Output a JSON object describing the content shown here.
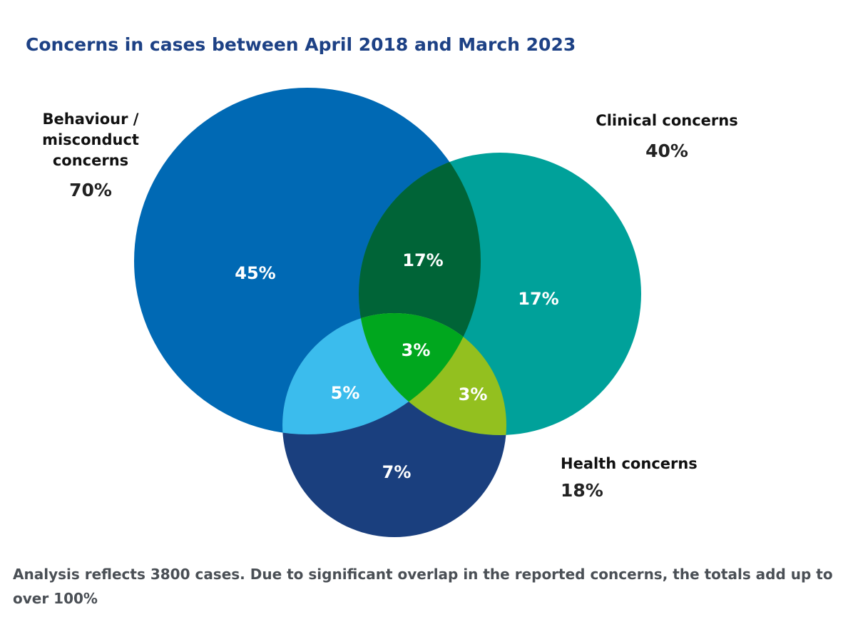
{
  "chart_data": {
    "type": "venn",
    "title": "Concerns in cases between April 2018 and March 2023",
    "sets": [
      "Behaviour / misconduct concerns",
      "Clinical concerns",
      "Health concerns"
    ],
    "values": [
      70,
      40,
      18
    ],
    "value_labels": [
      "70%",
      "40%",
      "18%"
    ],
    "colors": [
      "#0069b4",
      "#00a19a",
      "#1a3f7e"
    ],
    "regions": {
      "values": [
        45,
        17,
        17,
        5,
        3,
        3,
        7
      ],
      "value_labels": [
        "45%",
        "17%",
        "17%",
        "5%",
        "3%",
        "3%",
        "7%"
      ],
      "colors": [
        "#0069b4",
        "#006437",
        "#00a19a",
        "#3bbced",
        "#00a71e",
        "#93c01f",
        "#1a3f7e"
      ]
    },
    "note": "Analysis reflects 3800 cases. Due to significant overlap in the reported concerns, the totals add up to over 100%"
  }
}
